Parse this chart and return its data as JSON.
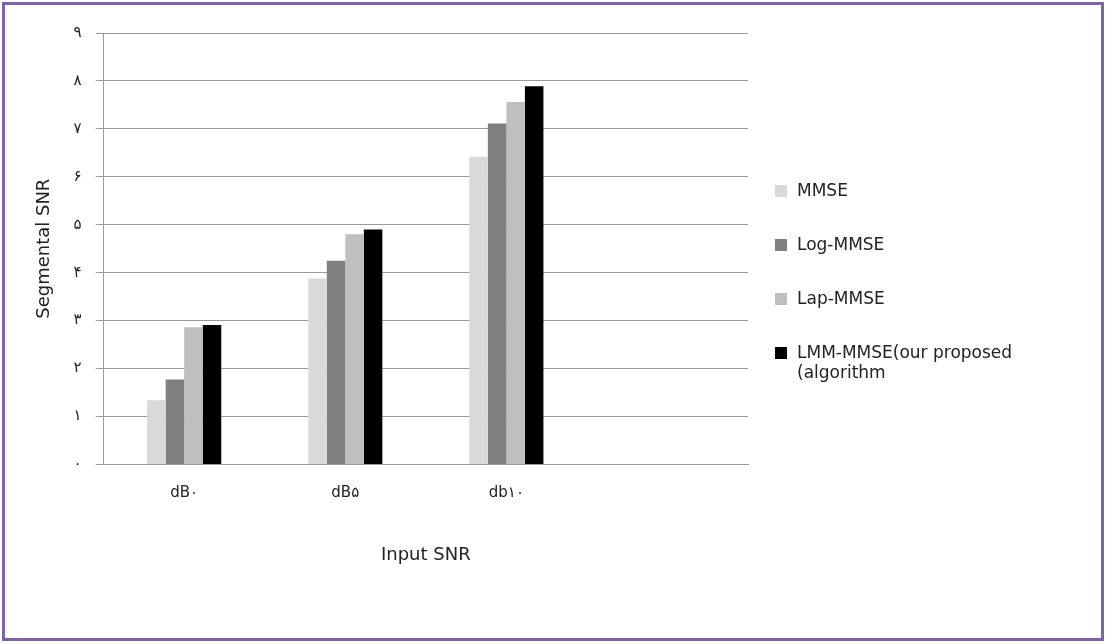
{
  "chart_data": {
    "type": "bar",
    "xlabel": "Input SNR",
    "ylabel": "Segmental SNR",
    "categories": [
      "dB۰",
      "dB۵",
      "db۱۰",
      null
    ],
    "series": [
      {
        "name": "MMSE",
        "color": "#d9d9d9",
        "values": [
          1.34,
          3.88,
          6.42,
          null
        ]
      },
      {
        "name": "Log-MMSE",
        "color": "#808080",
        "values": [
          1.77,
          4.25,
          7.11,
          null
        ]
      },
      {
        "name": "Lap-MMSE",
        "color": "#bfbfbf",
        "values": [
          2.86,
          4.8,
          7.56,
          null
        ]
      },
      {
        "name": "LMM-MMSE(our proposed (algorithm",
        "color": "#000000",
        "values": [
          2.91,
          4.9,
          7.89,
          null
        ]
      }
    ],
    "ylim": [
      0,
      9
    ],
    "yticks": [
      {
        "value": 0,
        "label": "۰"
      },
      {
        "value": 1,
        "label": "۱"
      },
      {
        "value": 2,
        "label": "۲"
      },
      {
        "value": 3,
        "label": "۳"
      },
      {
        "value": 4,
        "label": "۴"
      },
      {
        "value": 5,
        "label": "۵"
      },
      {
        "value": 6,
        "label": "۶"
      },
      {
        "value": 7,
        "label": "۷"
      },
      {
        "value": 8,
        "label": "۸"
      },
      {
        "value": 9,
        "label": "۹"
      }
    ],
    "grid": "y",
    "legend": "right"
  }
}
